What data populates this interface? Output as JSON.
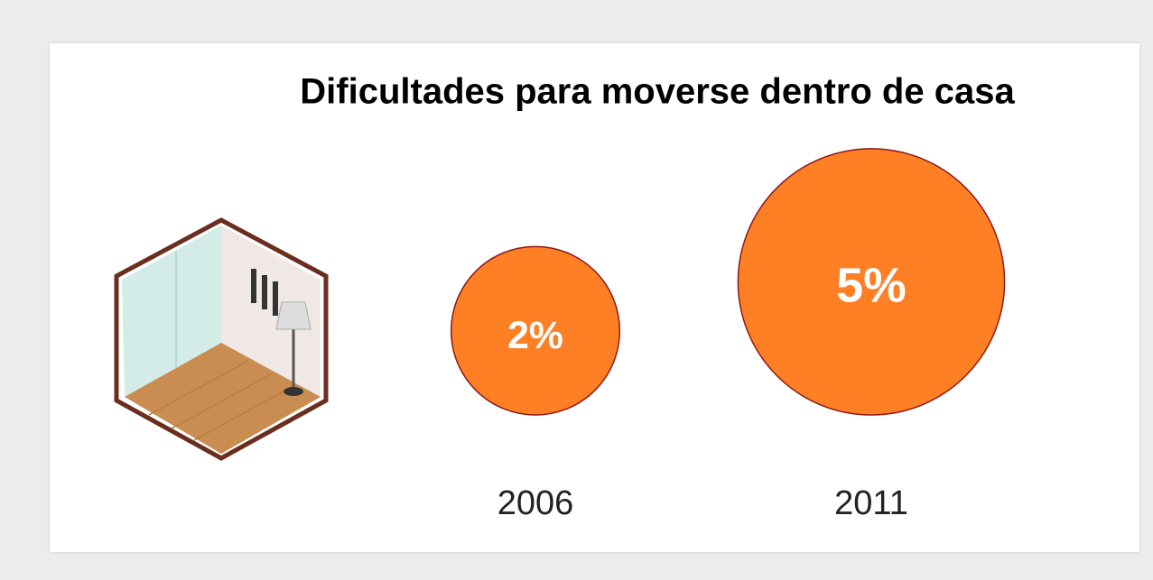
{
  "chart_data": {
    "type": "bubble",
    "title": "Dificultades para moverse dentro de casa",
    "categories": [
      "2006",
      "2011"
    ],
    "values": [
      2,
      5
    ],
    "value_labels": [
      "2%",
      "5%"
    ],
    "color": "#ff7f24",
    "stroke_color": "#8b1a1a"
  }
}
